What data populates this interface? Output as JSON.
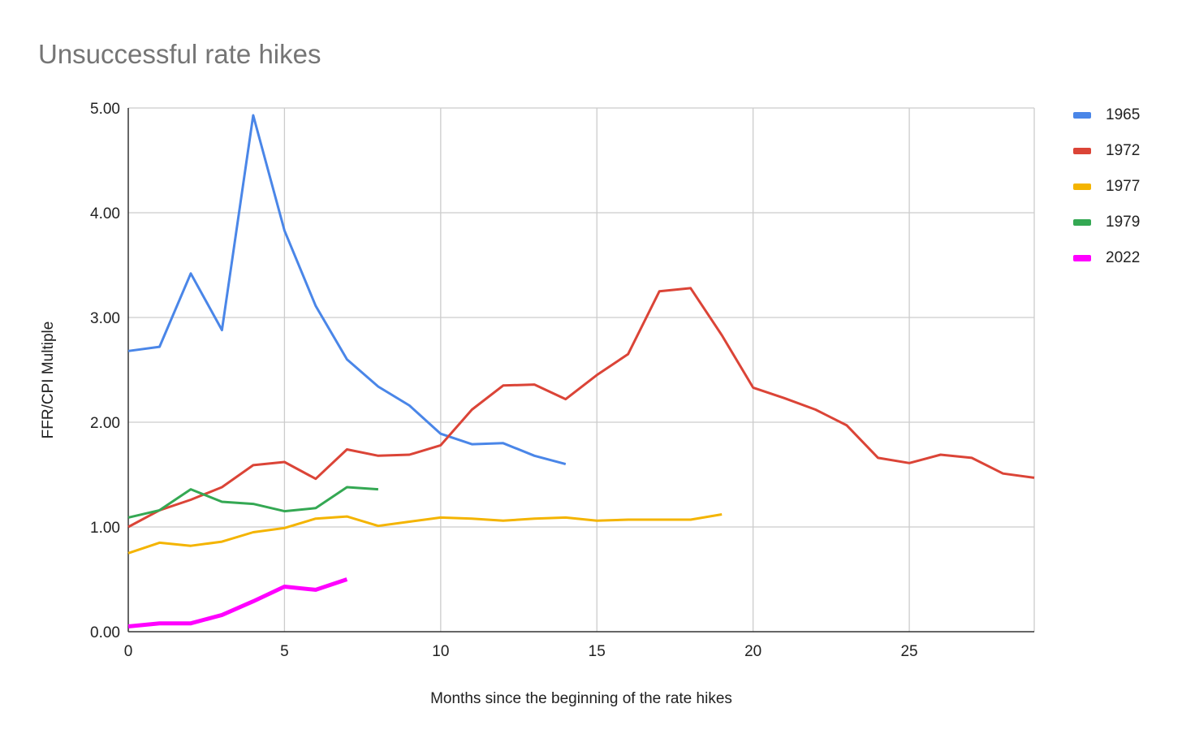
{
  "chart_data": {
    "type": "line",
    "title": "Unsuccessful rate hikes",
    "xlabel": "Months since the beginning of the rate hikes",
    "ylabel": "FFR/CPI Multiple",
    "xlim": [
      0,
      29
    ],
    "ylim": [
      0,
      5
    ],
    "x_ticks": [
      "0",
      "5",
      "10",
      "15",
      "20",
      "25"
    ],
    "y_ticks": [
      "0.00",
      "1.00",
      "2.00",
      "3.00",
      "4.00",
      "5.00"
    ],
    "grid": true,
    "legend_position": "right",
    "series": [
      {
        "name": "1965",
        "color": "#4a86e8",
        "x": [
          0,
          1,
          2,
          3,
          4,
          5,
          6,
          7,
          8,
          9,
          10,
          11,
          12,
          13,
          14
        ],
        "values": [
          2.68,
          2.72,
          3.42,
          2.88,
          4.93,
          3.83,
          3.11,
          2.6,
          2.34,
          2.16,
          1.89,
          1.79,
          1.8,
          1.68,
          1.6
        ]
      },
      {
        "name": "1972",
        "color": "#db4437",
        "x": [
          0,
          1,
          2,
          3,
          4,
          5,
          6,
          7,
          8,
          9,
          10,
          11,
          12,
          13,
          14,
          15,
          16,
          17,
          18,
          19,
          20,
          21,
          22,
          23,
          24,
          25,
          26,
          27,
          28,
          29
        ],
        "values": [
          1.0,
          1.16,
          1.26,
          1.38,
          1.59,
          1.62,
          1.46,
          1.74,
          1.68,
          1.69,
          1.78,
          2.12,
          2.35,
          2.36,
          2.22,
          2.45,
          2.65,
          3.25,
          3.28,
          2.83,
          2.33,
          2.23,
          2.12,
          1.97,
          1.66,
          1.61,
          1.69,
          1.66,
          1.51,
          1.47
        ]
      },
      {
        "name": "1977",
        "color": "#f4b400",
        "x": [
          0,
          1,
          2,
          3,
          4,
          5,
          6,
          7,
          8,
          9,
          10,
          11,
          12,
          13,
          14,
          15,
          16,
          17,
          18,
          19
        ],
        "values": [
          0.75,
          0.85,
          0.82,
          0.86,
          0.95,
          0.99,
          1.08,
          1.1,
          1.01,
          1.05,
          1.09,
          1.08,
          1.06,
          1.08,
          1.09,
          1.06,
          1.07,
          1.07,
          1.07,
          1.12
        ]
      },
      {
        "name": "1979",
        "color": "#34a853",
        "x": [
          0,
          1,
          2,
          3,
          4,
          5,
          6,
          7,
          8
        ],
        "values": [
          1.09,
          1.16,
          1.36,
          1.24,
          1.22,
          1.15,
          1.18,
          1.38,
          1.36
        ]
      },
      {
        "name": "2022",
        "color": "#ff00ff",
        "x": [
          0,
          1,
          2,
          3,
          4,
          5,
          6,
          7
        ],
        "values": [
          0.05,
          0.08,
          0.08,
          0.16,
          0.29,
          0.43,
          0.4,
          0.5
        ]
      }
    ]
  }
}
